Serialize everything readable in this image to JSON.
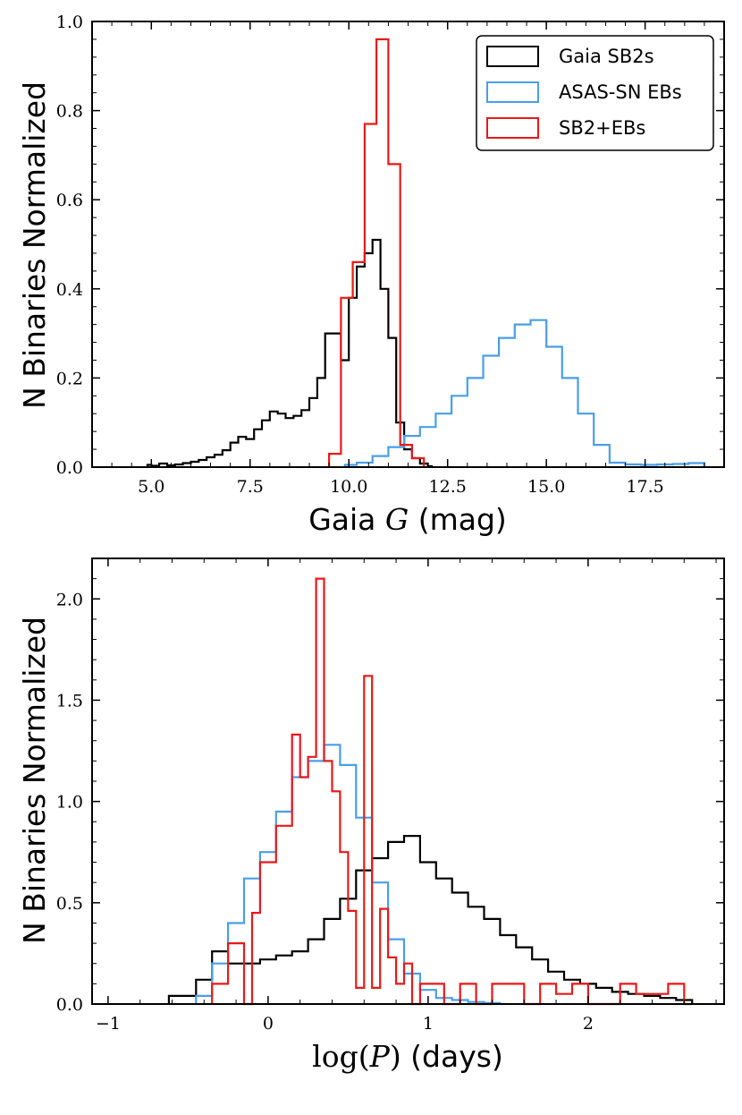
{
  "chart_data": [
    {
      "type": "step-histogram",
      "panel": "top",
      "xlabel_prefix": "Gaia ",
      "xlabel_symbol": "G",
      "xlabel_suffix": " (mag)",
      "ylabel": "N Binaries Normalized",
      "xlim": [
        3.5,
        19.5
      ],
      "ylim": [
        0,
        1.0
      ],
      "xticks": [
        5.0,
        7.5,
        10.0,
        12.5,
        15.0,
        17.5
      ],
      "xtick_labels": [
        "5.0",
        "7.5",
        "10.0",
        "12.5",
        "15.0",
        "17.5"
      ],
      "yticks": [
        0.0,
        0.2,
        0.4,
        0.6,
        0.8,
        1.0
      ],
      "ytick_labels": [
        "0.0",
        "0.2",
        "0.4",
        "0.6",
        "0.8",
        "1.0"
      ],
      "legend": {
        "position": "top-right",
        "entries": [
          "Gaia SB2s",
          "ASAS-SN EBs",
          "SB2+EBs"
        ]
      },
      "series": [
        {
          "name": "Gaia SB2s",
          "color": "#000000",
          "x": [
            4.9,
            5.0,
            5.2,
            5.4,
            5.6,
            5.8,
            6.0,
            6.2,
            6.4,
            6.6,
            6.8,
            7.0,
            7.2,
            7.4,
            7.6,
            7.8,
            8.0,
            8.2,
            8.4,
            8.6,
            8.8,
            9.0,
            9.2,
            9.4,
            9.6,
            9.8,
            10.0,
            10.2,
            10.4,
            10.6,
            10.8,
            11.0,
            11.2,
            11.4,
            11.6,
            11.8,
            12.0
          ],
          "values": [
            0.005,
            0.003,
            0.008,
            0.004,
            0.006,
            0.009,
            0.012,
            0.016,
            0.022,
            0.028,
            0.038,
            0.055,
            0.068,
            0.063,
            0.085,
            0.105,
            0.125,
            0.12,
            0.11,
            0.115,
            0.128,
            0.155,
            0.2,
            0.3,
            0.3,
            0.24,
            0.38,
            0.45,
            0.48,
            0.51,
            0.4,
            0.29,
            0.1,
            0.04,
            0.02,
            0.008,
            0.002
          ]
        },
        {
          "name": "ASAS-SN EBs",
          "color": "#4a9ee8",
          "x": [
            9.9,
            10.2,
            10.6,
            11.0,
            11.4,
            11.8,
            12.2,
            12.6,
            13.0,
            13.4,
            13.8,
            14.2,
            14.6,
            15.0,
            15.4,
            15.8,
            16.2,
            16.6,
            17.0,
            17.4,
            17.8,
            18.2,
            18.6,
            19.0
          ],
          "values": [
            0.005,
            0.01,
            0.025,
            0.045,
            0.07,
            0.09,
            0.12,
            0.16,
            0.2,
            0.25,
            0.29,
            0.32,
            0.33,
            0.27,
            0.2,
            0.12,
            0.05,
            0.01,
            0.006,
            0.005,
            0.006,
            0.007,
            0.009
          ],
          "x_end": 19.0
        },
        {
          "name": "SB2+EBs",
          "color": "#e81919",
          "x": [
            9.5,
            9.8,
            10.1,
            10.4,
            10.7,
            11.0,
            11.3,
            11.6,
            11.9
          ],
          "values": [
            0.03,
            0.38,
            0.46,
            0.77,
            0.96,
            0.68,
            0.05,
            0.02
          ],
          "x_end": 11.9
        }
      ]
    },
    {
      "type": "step-histogram",
      "panel": "bottom",
      "xlabel_prefix": "log(",
      "xlabel_symbol": "P",
      "xlabel_suffix": ")",
      "xlabel_unit": " (days)",
      "ylabel": "N Binaries Normalized",
      "xlim": [
        -1.1,
        2.85
      ],
      "ylim": [
        0,
        2.2
      ],
      "xticks": [
        -1,
        0,
        1,
        2
      ],
      "xtick_labels": [
        "−1",
        "0",
        "1",
        "2"
      ],
      "yticks": [
        0.0,
        0.5,
        1.0,
        1.5,
        2.0
      ],
      "ytick_labels": [
        "0.0",
        "0.5",
        "1.0",
        "1.5",
        "2.0"
      ],
      "series": [
        {
          "name": "Gaia SB2s",
          "color": "#000000",
          "x": [
            -0.62,
            -0.45,
            -0.35,
            -0.25,
            -0.15,
            -0.05,
            0.05,
            0.15,
            0.25,
            0.35,
            0.45,
            0.55,
            0.65,
            0.75,
            0.85,
            0.95,
            1.05,
            1.15,
            1.25,
            1.35,
            1.45,
            1.55,
            1.65,
            1.75,
            1.85,
            1.95,
            2.05,
            2.15,
            2.25,
            2.35,
            2.45,
            2.55,
            2.65
          ],
          "values": [
            0.04,
            0.12,
            0.26,
            0.2,
            0.2,
            0.22,
            0.24,
            0.26,
            0.32,
            0.42,
            0.52,
            0.66,
            0.72,
            0.8,
            0.83,
            0.7,
            0.62,
            0.55,
            0.48,
            0.42,
            0.34,
            0.28,
            0.22,
            0.16,
            0.12,
            0.1,
            0.08,
            0.06,
            0.05,
            0.04,
            0.03,
            0.02
          ],
          "x_end": 2.7
        },
        {
          "name": "ASAS-SN EBs",
          "color": "#4a9ee8",
          "x": [
            -0.45,
            -0.35,
            -0.25,
            -0.15,
            -0.05,
            0.05,
            0.15,
            0.25,
            0.35,
            0.45,
            0.55,
            0.65,
            0.75,
            0.85,
            0.95,
            1.05,
            1.15,
            1.25,
            1.35,
            1.45
          ],
          "values": [
            0.04,
            0.2,
            0.4,
            0.62,
            0.75,
            0.95,
            1.12,
            1.2,
            1.28,
            1.18,
            0.92,
            0.6,
            0.32,
            0.15,
            0.07,
            0.03,
            0.02,
            0.01,
            0.005
          ],
          "x_end": 1.55
        },
        {
          "name": "SB2+EBs",
          "color": "#e81919",
          "x": [
            -0.35,
            -0.25,
            -0.15,
            -0.1,
            -0.05,
            0.05,
            0.15,
            0.2,
            0.25,
            0.3,
            0.35,
            0.4,
            0.45,
            0.5,
            0.55,
            0.6,
            0.65,
            0.7,
            0.75,
            0.8,
            0.85,
            0.9,
            0.95,
            1.0,
            1.1,
            1.2,
            1.3,
            1.4,
            1.5,
            1.6,
            1.7,
            1.8,
            1.9,
            2.0,
            2.1,
            2.2,
            2.3,
            2.5,
            2.6,
            2.65
          ],
          "values": [
            0.1,
            0.3,
            0.0,
            0.45,
            0.7,
            0.88,
            1.33,
            1.12,
            1.22,
            2.1,
            1.2,
            1.05,
            0.75,
            0.46,
            0.08,
            1.62,
            0.08,
            0.47,
            0.23,
            0.1,
            0.2,
            0.0,
            0.1,
            0.1,
            0.0,
            0.1,
            0.0,
            0.1,
            0.1,
            0.0,
            0.1,
            0.05,
            0.1,
            0.0,
            0.0,
            0.1,
            0.05,
            0.1,
            0.0
          ],
          "x_end": 2.65
        }
      ]
    }
  ]
}
